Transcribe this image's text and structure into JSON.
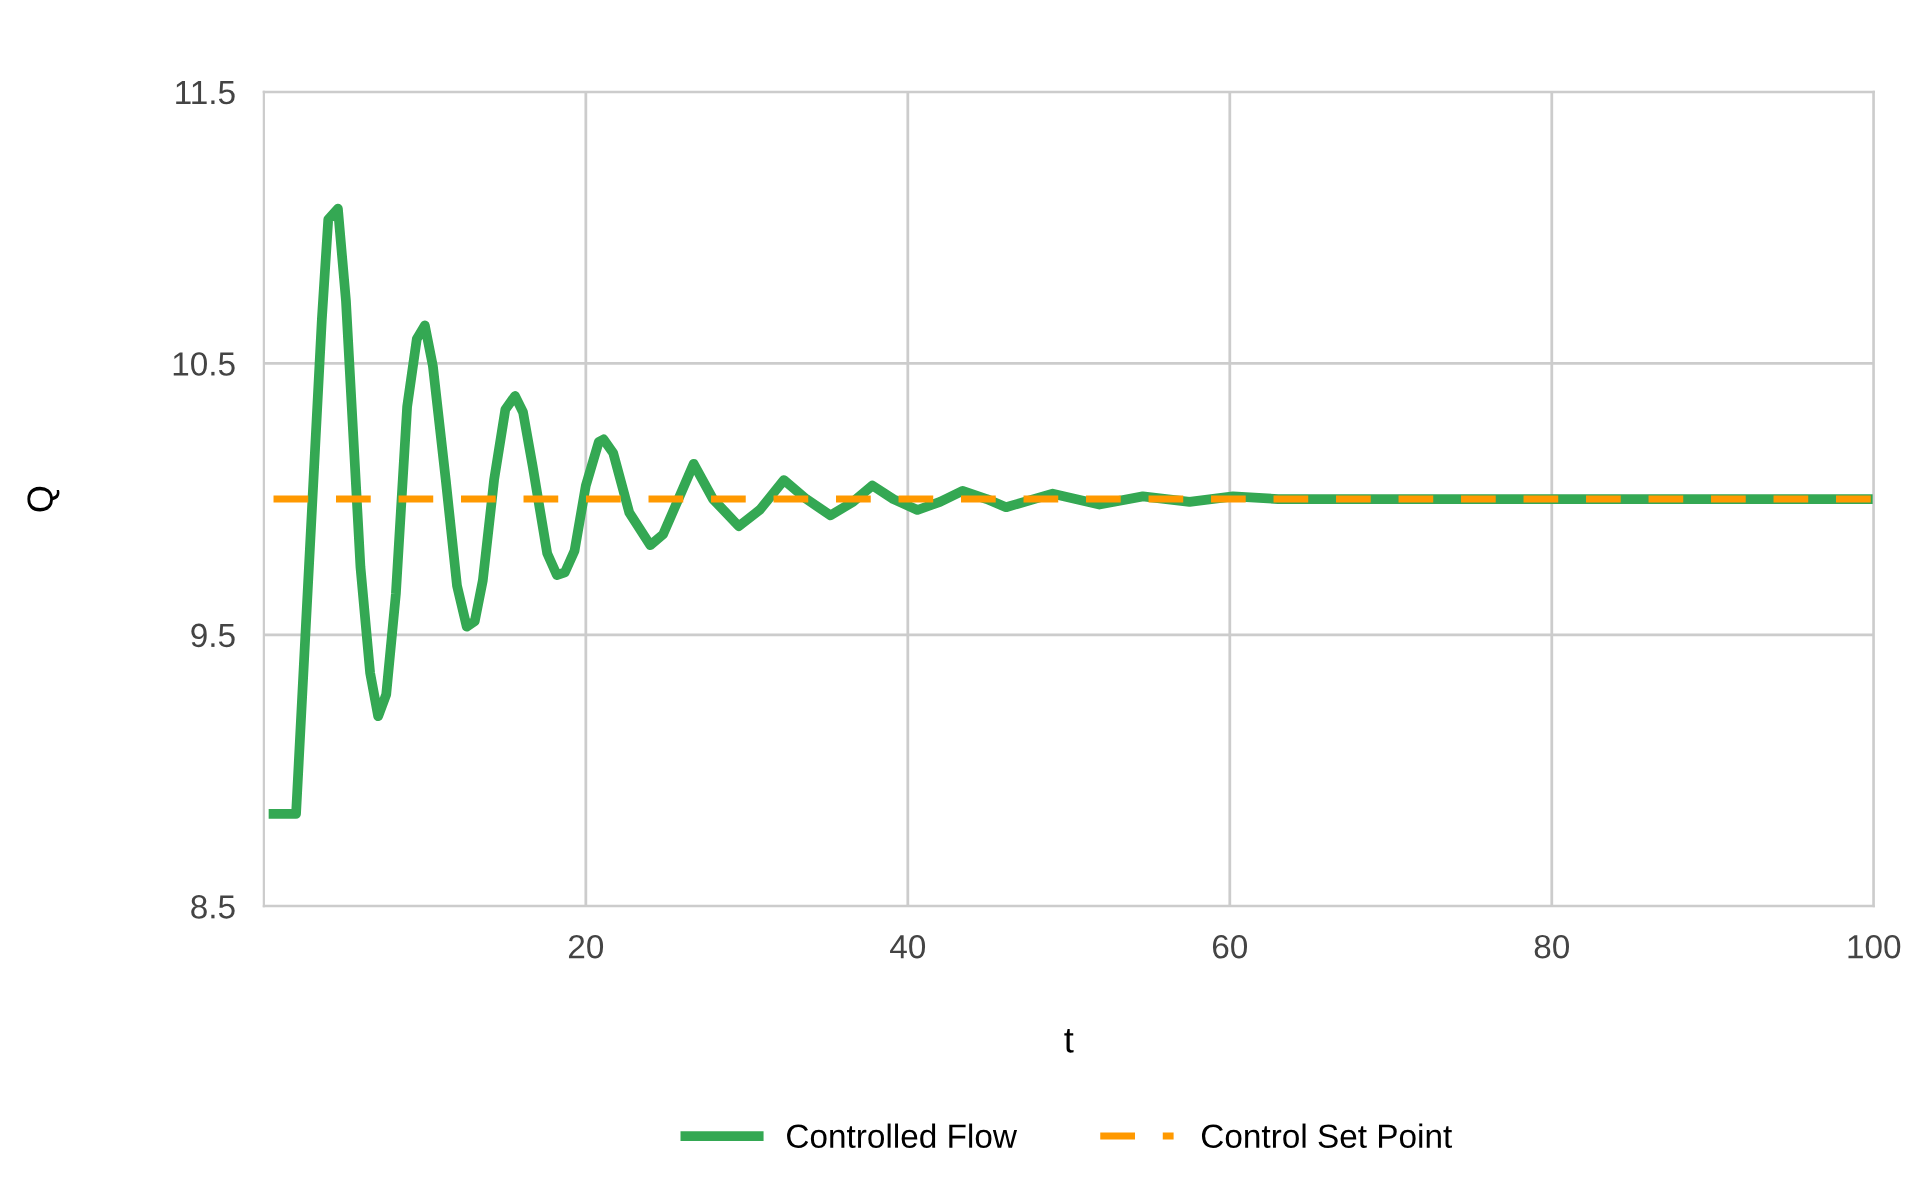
{
  "chart_data": {
    "type": "line",
    "xlabel": "t",
    "ylabel": "Q",
    "xlim": [
      0,
      100
    ],
    "ylim": [
      8.5,
      11.5
    ],
    "xticks": [
      20,
      40,
      60,
      80,
      100
    ],
    "yticks": [
      8.5,
      9.5,
      10.5,
      11.5
    ],
    "grid": true,
    "legend": "bottom",
    "marker": "none",
    "series": [
      {
        "name": "Controlled Flow",
        "color": "#34a853",
        "line_style": "solid",
        "x": [
          0.6,
          2.0,
          3.6,
          4.0,
          4.6,
          5.1,
          6.0,
          6.6,
          7.1,
          7.6,
          8.2,
          8.9,
          9.5,
          10.0,
          10.5,
          11.3,
          12.0,
          12.6,
          13.1,
          13.6,
          14.3,
          15.0,
          15.6,
          16.1,
          16.7,
          17.6,
          18.2,
          18.7,
          19.3,
          20.0,
          20.8,
          21.1,
          21.7,
          22.7,
          24.0,
          24.8,
          26.7,
          27.9,
          29.5,
          30.8,
          32.3,
          33.7,
          35.2,
          36.6,
          37.8,
          39.1,
          40.6,
          42.0,
          43.4,
          44.9,
          46.1,
          49.0,
          51.9,
          54.6,
          57.5,
          60.2,
          63.0,
          66.0,
          70.0,
          75.0,
          80.0,
          85.0,
          90.0,
          95.0,
          100.0
        ],
        "values": [
          8.84,
          8.84,
          10.66,
          11.03,
          11.07,
          10.73,
          9.75,
          9.36,
          9.2,
          9.28,
          9.65,
          10.34,
          10.59,
          10.64,
          10.49,
          10.07,
          9.68,
          9.53,
          9.55,
          9.7,
          10.07,
          10.33,
          10.38,
          10.32,
          10.12,
          9.8,
          9.72,
          9.73,
          9.81,
          10.05,
          10.21,
          10.22,
          10.17,
          9.95,
          9.83,
          9.87,
          10.13,
          10.0,
          9.9,
          9.96,
          10.07,
          10.0,
          9.94,
          9.99,
          10.05,
          10.0,
          9.96,
          9.99,
          10.03,
          10.0,
          9.97,
          10.02,
          9.98,
          10.01,
          9.99,
          10.01,
          10.0,
          10.0,
          10.0,
          10.0,
          10.0,
          10.0,
          10.0,
          10.0,
          10.0
        ]
      },
      {
        "name": "Control Set Point",
        "color": "#ff9900",
        "line_style": "dashed",
        "x": [
          0.6,
          100
        ],
        "values": [
          10,
          10
        ]
      }
    ]
  }
}
